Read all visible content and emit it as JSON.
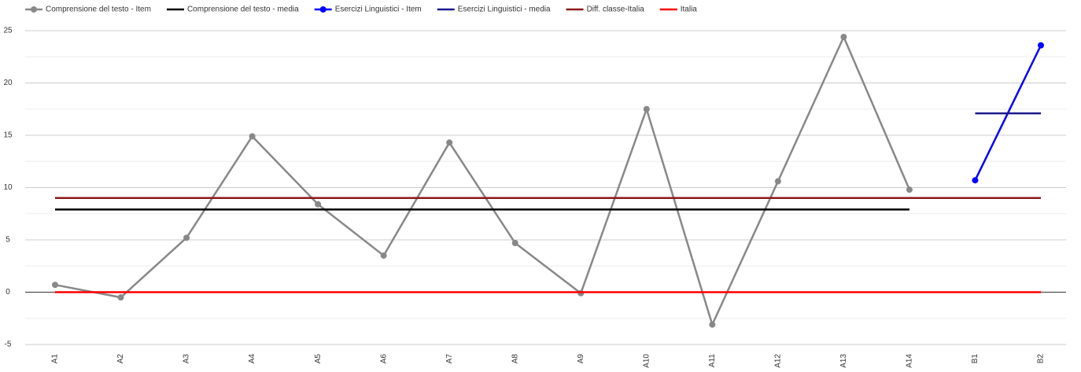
{
  "chart_data": {
    "type": "line",
    "categories": [
      "A1",
      "A2",
      "A3",
      "A4",
      "A5",
      "A6",
      "A7",
      "A8",
      "A9",
      "A10",
      "A11",
      "A12",
      "A13",
      "A14",
      "B1",
      "B2"
    ],
    "series": [
      {
        "name": "Comprensione del testo - Item",
        "color": "#888888",
        "marker": true,
        "values": [
          0.7,
          -0.5,
          5.2,
          14.9,
          8.4,
          3.5,
          14.3,
          4.7,
          -0.1,
          17.5,
          -3.1,
          10.6,
          24.4,
          9.8,
          null,
          null
        ]
      },
      {
        "name": "Comprensione del testo - media",
        "color": "#000000",
        "marker": false,
        "values": [
          7.9,
          7.9,
          7.9,
          7.9,
          7.9,
          7.9,
          7.9,
          7.9,
          7.9,
          7.9,
          7.9,
          7.9,
          7.9,
          7.9,
          null,
          null
        ]
      },
      {
        "name": "Esercizi Linguistici - Item",
        "color": "#0000ff",
        "marker": true,
        "values": [
          null,
          null,
          null,
          null,
          null,
          null,
          null,
          null,
          null,
          null,
          null,
          null,
          null,
          null,
          10.7,
          23.6
        ]
      },
      {
        "name": "Esercizi Linguistici - media",
        "color": "#1a1a8c",
        "marker": false,
        "values": [
          null,
          null,
          null,
          null,
          null,
          null,
          null,
          null,
          null,
          null,
          null,
          null,
          null,
          null,
          17.1,
          17.1
        ]
      },
      {
        "name": "Diff. classe-Italia",
        "color": "#8b1a1a",
        "marker": false,
        "values": [
          9.0,
          9.0,
          9.0,
          9.0,
          9.0,
          9.0,
          9.0,
          9.0,
          9.0,
          9.0,
          9.0,
          9.0,
          9.0,
          9.0,
          9.0,
          9.0
        ]
      },
      {
        "name": "Italia",
        "color": "#ff0000",
        "marker": false,
        "values": [
          0,
          0,
          0,
          0,
          0,
          0,
          0,
          0,
          0,
          0,
          0,
          0,
          0,
          0,
          0,
          0
        ]
      }
    ],
    "ylim": [
      -5,
      25
    ],
    "yticks": [
      -5,
      0,
      5,
      10,
      15,
      20,
      25
    ],
    "minor_yticks": [
      -2.5,
      2.5,
      7.5,
      12.5,
      17.5,
      22.5
    ],
    "grid": true,
    "legend": "top"
  }
}
